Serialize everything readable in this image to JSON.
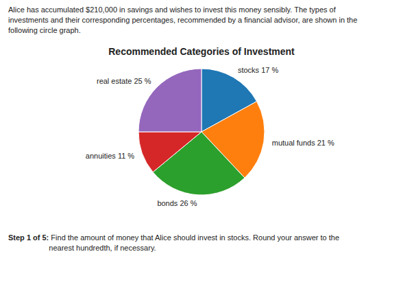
{
  "chart_data": {
    "type": "pie",
    "title": "Recommended Categories of Investment",
    "subtitle": "Alice has accumulated $210,000 in savings and wishes to invest this money sensibly. The types of\ninvestments and their corresponding percentages, recommended by a financial advisor, are shown in the\nfollowing circle graph.",
    "categories": [
      "stocks 17 %",
      "mutual funds 21 %",
      "bonds 26 %",
      "annuities 11 %",
      "real estate 25 %"
    ],
    "values": [
      17,
      21,
      26,
      11,
      25
    ],
    "annotations": [
      "Step 1 of 5:",
      " Find the amount of money that Alice should invest in stocks. Round your answer to the\nnearest hundredth, if necessary."
    ]
  }
}
